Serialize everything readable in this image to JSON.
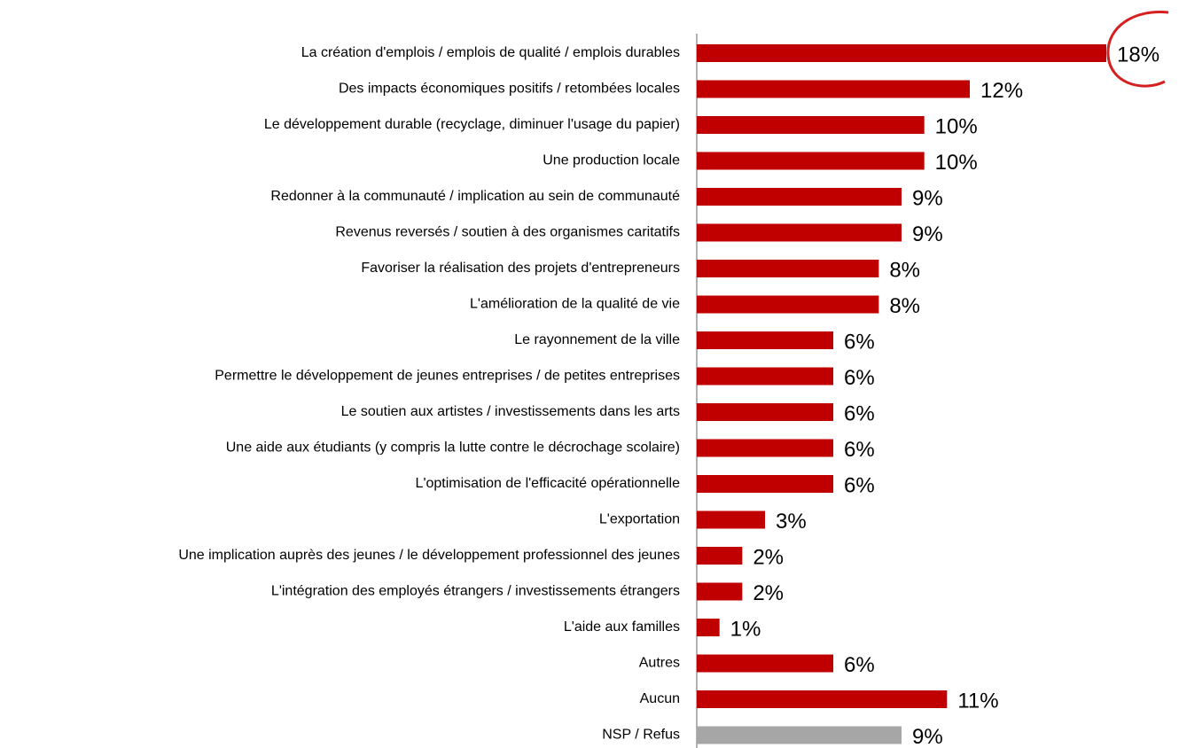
{
  "chart_data": {
    "type": "bar",
    "orientation": "horizontal",
    "categories": [
      "La création d'emplois / emplois de qualité / emplois durables",
      "Des impacts économiques positifs / retombées locales",
      "Le développement durable (recyclage, diminuer l'usage du papier)",
      "Une production locale",
      "Redonner à la communauté / implication au sein de communauté",
      "Revenus reversés / soutien à des organismes caritatifs",
      "Favoriser la réalisation des projets d'entrepreneurs",
      "L'amélioration de la qualité de vie",
      "Le rayonnement de la ville",
      "Permettre le développement de jeunes entreprises / de petites entreprises",
      "Le soutien aux artistes / investissements dans les arts",
      "Une aide aux étudiants (y compris la lutte contre le décrochage scolaire)",
      "L'optimisation de l'efficacité opérationnelle",
      "L'exportation",
      "Une implication auprès des jeunes / le développement professionnel des jeunes",
      "L'intégration des employés étrangers / investissements étrangers",
      "L'aide aux familles",
      "Autres ",
      "Aucun",
      "NSP / Refus"
    ],
    "values": [
      18,
      12,
      10,
      10,
      9,
      9,
      8,
      8,
      6,
      6,
      6,
      6,
      6,
      3,
      2,
      2,
      1,
      6,
      11,
      9
    ],
    "value_labels": [
      "18%",
      "12%",
      "10%",
      "10%",
      "9%",
      "9%",
      "8%",
      "8%",
      "6%",
      "6%",
      "6%",
      "6%",
      "6%",
      "3%",
      "2%",
      "2%",
      "1%",
      "6%",
      "11%",
      "9%"
    ],
    "colors": [
      "#c00000",
      "#c00000",
      "#c00000",
      "#c00000",
      "#c00000",
      "#c00000",
      "#c00000",
      "#c00000",
      "#c00000",
      "#c00000",
      "#c00000",
      "#c00000",
      "#c00000",
      "#c00000",
      "#c00000",
      "#c00000",
      "#c00000",
      "#c00000",
      "#c00000",
      "#a6a6a6"
    ]
  }
}
